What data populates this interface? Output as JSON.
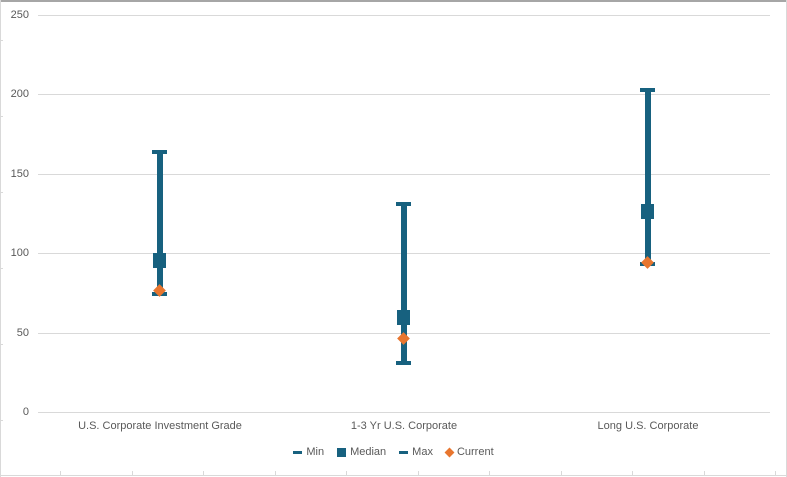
{
  "chart_data": {
    "type": "hilo",
    "categories": [
      "U.S. Corporate Investment Grade",
      "1-3 Yr U.S. Corporate",
      "Long U.S. Corporate"
    ],
    "series": [
      {
        "name": "Min",
        "marker": "dash",
        "values": [
          74,
          31,
          93
        ]
      },
      {
        "name": "Median",
        "marker": "square",
        "values": [
          95,
          59,
          126
        ]
      },
      {
        "name": "Max",
        "marker": "dash",
        "values": [
          164,
          131,
          203
        ]
      },
      {
        "name": "Current",
        "marker": "diamond",
        "values": [
          76,
          46,
          94
        ]
      }
    ],
    "ylim": [
      0,
      250
    ],
    "yticks": [
      0,
      50,
      100,
      150,
      200,
      250
    ],
    "grid": true,
    "legend_position": "bottom-center",
    "colors": {
      "range": "#17617F",
      "current": "#E8762F",
      "gridline": "#D9D9D9",
      "text": "#595959",
      "border": "#D9D9D9",
      "top_edge": "#A6A6A6"
    }
  }
}
